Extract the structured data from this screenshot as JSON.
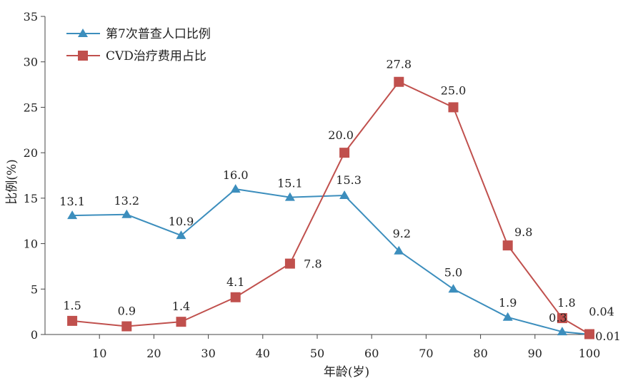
{
  "chart_data": {
    "type": "line",
    "xlabel": "年龄(岁)",
    "ylabel": "比例(%)",
    "xlim": [
      0,
      100
    ],
    "ylim": [
      0,
      35
    ],
    "xticks": [
      10,
      20,
      30,
      40,
      50,
      60,
      70,
      80,
      90,
      100
    ],
    "yticks": [
      0,
      5,
      10,
      15,
      20,
      25,
      30,
      35
    ],
    "grid": false,
    "legend_position": "top-left",
    "series": [
      {
        "name": "第7次普查人口比例",
        "color": "#3c8ebd",
        "marker": "triangle",
        "x": [
          5,
          15,
          25,
          35,
          45,
          55,
          65,
          75,
          85,
          95,
          100
        ],
        "values": [
          13.1,
          13.2,
          10.9,
          16.0,
          15.1,
          15.3,
          9.2,
          5.0,
          1.9,
          0.3,
          0.01
        ],
        "labels": [
          "13.1",
          "13.2",
          "10.9",
          "16.0",
          "15.1",
          "15.3",
          "9.2",
          "5.0",
          "1.9",
          "0.3",
          "0.01"
        ]
      },
      {
        "name": "CVD治疗费用占比",
        "color": "#c0504d",
        "marker": "square",
        "x": [
          5,
          15,
          25,
          35,
          45,
          55,
          65,
          75,
          85,
          95,
          100
        ],
        "values": [
          1.5,
          0.9,
          1.4,
          4.1,
          7.8,
          20.0,
          27.8,
          25.0,
          9.8,
          1.8,
          0.04
        ],
        "labels": [
          "1.5",
          "0.9",
          "1.4",
          "4.1",
          "7.8",
          "20.0",
          "27.8",
          "25.0",
          "9.8",
          "1.8",
          "0.04"
        ]
      }
    ]
  }
}
